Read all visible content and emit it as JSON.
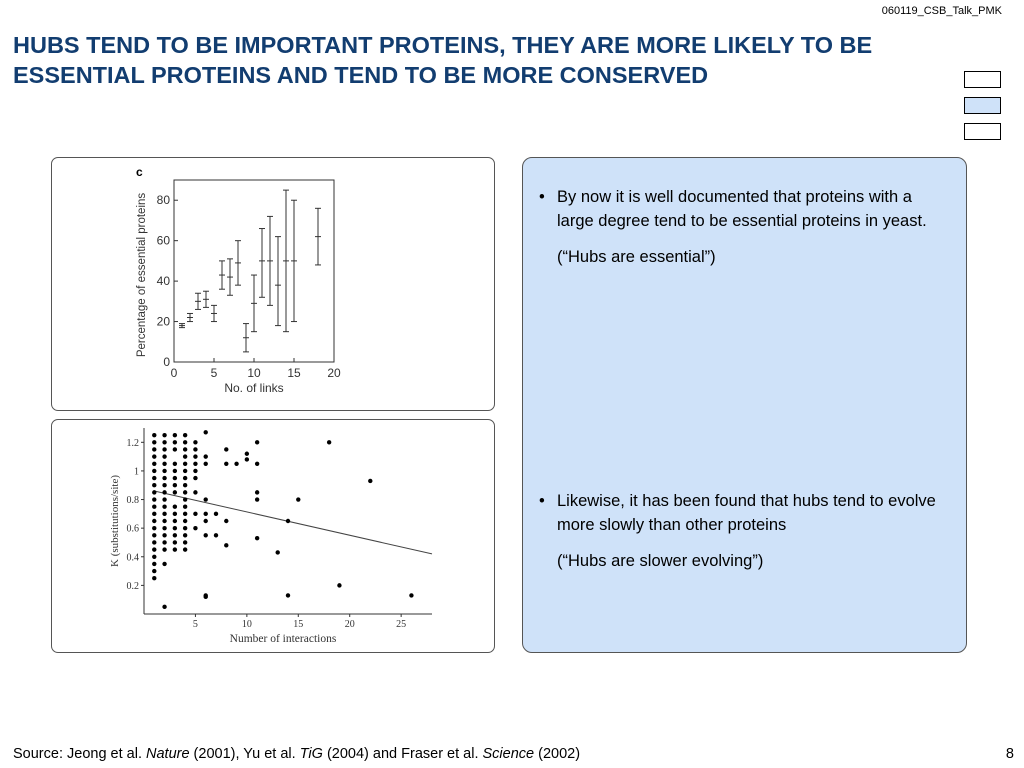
{
  "slide": {
    "tag": "060119_CSB_Talk_PMK",
    "title": "HUBS TEND TO BE IMPORTANT PROTEINS, THEY ARE MORE LIKELY TO BE ESSENTIAL PROTEINS AND TEND TO BE MORE CONSERVED",
    "page_number": "8",
    "source": {
      "prefix": "Source: Jeong et al. ",
      "journal1": "Nature",
      "mid1": " (2001), Yu et al. ",
      "journal2": "TiG",
      "mid2": " (2004) and Fraser et al. ",
      "journal3": "Science",
      "suffix": " (2002)"
    },
    "bullets": [
      {
        "text": "By now it is well documented that proteins with a large degree tend to be essential proteins in yeast.",
        "quote": "(“Hubs are essential”)"
      },
      {
        "text": "Likewise, it has been found that hubs tend to evolve more slowly than other proteins",
        "quote": "(“Hubs are slower evolving”)"
      }
    ],
    "colors": {
      "title": "#123d70",
      "panel_bg": "#cfe2f9"
    }
  },
  "chart_data": [
    {
      "type": "scatter",
      "panel_label": "c",
      "xlabel": "No. of links",
      "ylabel": "Percentage of essential proteins",
      "xlim": [
        0,
        20
      ],
      "ylim": [
        0,
        90
      ],
      "xticks": [
        "0",
        "5",
        "10",
        "15",
        "20"
      ],
      "yticks": [
        "0",
        "20",
        "40",
        "60",
        "80"
      ],
      "points": [
        {
          "x": 1,
          "y": 18,
          "lo": 17,
          "hi": 19
        },
        {
          "x": 2,
          "y": 22,
          "lo": 20,
          "hi": 24
        },
        {
          "x": 3,
          "y": 30,
          "lo": 26,
          "hi": 34
        },
        {
          "x": 4,
          "y": 31,
          "lo": 27,
          "hi": 35
        },
        {
          "x": 5,
          "y": 24,
          "lo": 20,
          "hi": 28
        },
        {
          "x": 6,
          "y": 43,
          "lo": 36,
          "hi": 50
        },
        {
          "x": 7,
          "y": 42,
          "lo": 33,
          "hi": 51
        },
        {
          "x": 8,
          "y": 49,
          "lo": 38,
          "hi": 60
        },
        {
          "x": 9,
          "y": 12,
          "lo": 5,
          "hi": 19
        },
        {
          "x": 10,
          "y": 29,
          "lo": 15,
          "hi": 43
        },
        {
          "x": 11,
          "y": 50,
          "lo": 32,
          "hi": 66
        },
        {
          "x": 12,
          "y": 50,
          "lo": 28,
          "hi": 72
        },
        {
          "x": 13,
          "y": 38,
          "lo": 18,
          "hi": 62
        },
        {
          "x": 14,
          "y": 50,
          "lo": 15,
          "hi": 85
        },
        {
          "x": 15,
          "y": 50,
          "lo": 20,
          "hi": 80
        },
        {
          "x": 18,
          "y": 62,
          "lo": 48,
          "hi": 76
        }
      ]
    },
    {
      "type": "scatter",
      "xlabel": "Number of interactions",
      "ylabel": "K (substitutions/site)",
      "xlim": [
        0,
        28
      ],
      "ylim": [
        0,
        1.3
      ],
      "xticks": [
        "5",
        "10",
        "15",
        "20",
        "25"
      ],
      "yticks": [
        "0.2",
        "0.4",
        "0.6",
        "0.8",
        "1",
        "1.2"
      ],
      "trend": {
        "x1": 1,
        "y1": 0.86,
        "x2": 28,
        "y2": 0.42
      },
      "points": [
        [
          1,
          1.25
        ],
        [
          1,
          1.2
        ],
        [
          1,
          1.15
        ],
        [
          1,
          1.1
        ],
        [
          1,
          1.05
        ],
        [
          1,
          1.0
        ],
        [
          1,
          0.95
        ],
        [
          1,
          0.9
        ],
        [
          1,
          0.85
        ],
        [
          1,
          0.8
        ],
        [
          1,
          0.75
        ],
        [
          1,
          0.7
        ],
        [
          1,
          0.65
        ],
        [
          1,
          0.6
        ],
        [
          1,
          0.55
        ],
        [
          1,
          0.5
        ],
        [
          1,
          0.45
        ],
        [
          1,
          0.4
        ],
        [
          1,
          0.35
        ],
        [
          1,
          0.3
        ],
        [
          1,
          0.25
        ],
        [
          2,
          1.25
        ],
        [
          2,
          1.2
        ],
        [
          2,
          1.15
        ],
        [
          2,
          1.1
        ],
        [
          2,
          1.05
        ],
        [
          2,
          1.0
        ],
        [
          2,
          0.95
        ],
        [
          2,
          0.9
        ],
        [
          2,
          0.85
        ],
        [
          2,
          0.8
        ],
        [
          2,
          0.75
        ],
        [
          2,
          0.7
        ],
        [
          2,
          0.65
        ],
        [
          2,
          0.6
        ],
        [
          2,
          0.55
        ],
        [
          2,
          0.5
        ],
        [
          2,
          0.45
        ],
        [
          2,
          0.35
        ],
        [
          2,
          0.05
        ],
        [
          3,
          1.25
        ],
        [
          3,
          1.2
        ],
        [
          3,
          1.15
        ],
        [
          3,
          1.05
        ],
        [
          3,
          1.0
        ],
        [
          3,
          0.95
        ],
        [
          3,
          0.9
        ],
        [
          3,
          0.85
        ],
        [
          3,
          0.75
        ],
        [
          3,
          0.7
        ],
        [
          3,
          0.65
        ],
        [
          3,
          0.6
        ],
        [
          3,
          0.55
        ],
        [
          3,
          0.5
        ],
        [
          3,
          0.45
        ],
        [
          4,
          1.25
        ],
        [
          4,
          1.2
        ],
        [
          4,
          1.15
        ],
        [
          4,
          1.1
        ],
        [
          4,
          1.05
        ],
        [
          4,
          1.0
        ],
        [
          4,
          0.95
        ],
        [
          4,
          0.9
        ],
        [
          4,
          0.85
        ],
        [
          4,
          0.8
        ],
        [
          4,
          0.75
        ],
        [
          4,
          0.7
        ],
        [
          4,
          0.65
        ],
        [
          4,
          0.6
        ],
        [
          4,
          0.55
        ],
        [
          4,
          0.5
        ],
        [
          4,
          0.45
        ],
        [
          5,
          1.2
        ],
        [
          5,
          1.15
        ],
        [
          5,
          1.1
        ],
        [
          5,
          1.05
        ],
        [
          5,
          1.0
        ],
        [
          5,
          0.95
        ],
        [
          5,
          0.85
        ],
        [
          5,
          0.7
        ],
        [
          5,
          0.6
        ],
        [
          6,
          1.27
        ],
        [
          6,
          1.1
        ],
        [
          6,
          1.05
        ],
        [
          6,
          0.8
        ],
        [
          6,
          0.7
        ],
        [
          6,
          0.65
        ],
        [
          6,
          0.55
        ],
        [
          6,
          0.12
        ],
        [
          6,
          0.13
        ],
        [
          7,
          0.7
        ],
        [
          7,
          0.55
        ],
        [
          8,
          1.15
        ],
        [
          8,
          1.05
        ],
        [
          8,
          0.65
        ],
        [
          8,
          0.48
        ],
        [
          9,
          1.05
        ],
        [
          10,
          1.12
        ],
        [
          10,
          1.08
        ],
        [
          11,
          1.2
        ],
        [
          11,
          1.05
        ],
        [
          11,
          0.85
        ],
        [
          11,
          0.8
        ],
        [
          11,
          0.53
        ],
        [
          13,
          0.43
        ],
        [
          14,
          0.65
        ],
        [
          14,
          0.13
        ],
        [
          15,
          0.8
        ],
        [
          18,
          1.2
        ],
        [
          19,
          0.2
        ],
        [
          22,
          0.93
        ],
        [
          26,
          0.13
        ]
      ]
    }
  ]
}
